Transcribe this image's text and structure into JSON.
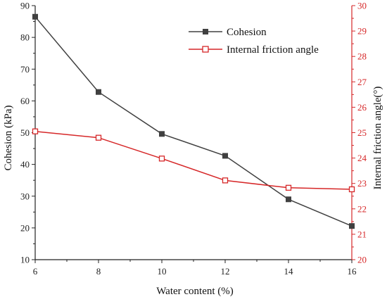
{
  "colors": {
    "cohesion": "#404040",
    "friction": "#d62728",
    "axis_left": "#222222",
    "axis_right": "#d62728"
  },
  "chart_data": {
    "type": "line",
    "xlabel": "Water content (%)",
    "ylabel": "Cohesion (kPa)",
    "y2label": "Internal friction angle(°)",
    "x": [
      6,
      8,
      10,
      12,
      14,
      16
    ],
    "xlim": [
      6,
      16
    ],
    "ylim": [
      10,
      90
    ],
    "y2lim": [
      20,
      30
    ],
    "xticks": [
      "6",
      "8",
      "10",
      "12",
      "14",
      "16"
    ],
    "yticks": [
      "10",
      "20",
      "30",
      "40",
      "50",
      "60",
      "70",
      "80",
      "90"
    ],
    "y2ticks": [
      "20",
      "21",
      "22",
      "23",
      "24",
      "25",
      "26",
      "27",
      "28",
      "29",
      "30"
    ],
    "grid": false,
    "legend_position": "top-right",
    "series": [
      {
        "name": "Cohesion",
        "axis": "left",
        "marker": "filled-square",
        "values": [
          86.5,
          62.8,
          49.6,
          42.7,
          29.0,
          20.6
        ]
      },
      {
        "name": "Internal friction angle",
        "axis": "right",
        "marker": "open-square",
        "values": [
          25.05,
          24.8,
          23.98,
          23.12,
          22.83,
          22.77
        ]
      }
    ]
  }
}
